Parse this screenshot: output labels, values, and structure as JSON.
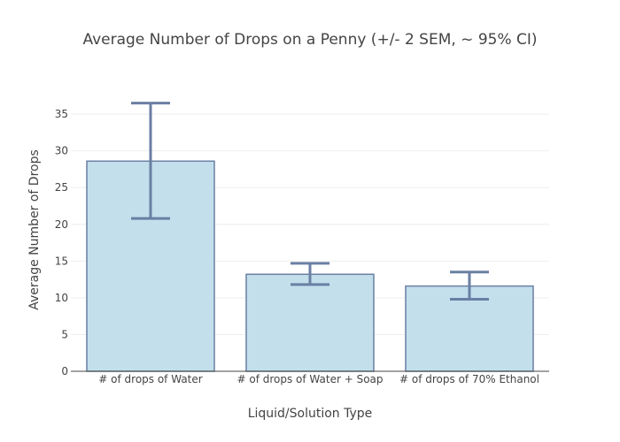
{
  "chart_data": {
    "type": "bar",
    "title": "Average Number of Drops on a Penny (+/- 2 SEM, ~ 95% CI)",
    "xlabel": "Liquid/Solution Type",
    "ylabel": "Average Number of Drops",
    "categories": [
      "# of drops of Water",
      "# of drops of Water + Soap",
      "# of drops of 70% Ethanol"
    ],
    "values": [
      28.6,
      13.2,
      11.6
    ],
    "error_low": [
      20.8,
      11.8,
      9.8
    ],
    "error_high": [
      36.5,
      14.7,
      13.5
    ],
    "ylim": [
      0,
      38.5
    ],
    "yticks": [
      0,
      5,
      10,
      15,
      20,
      25,
      30,
      35
    ],
    "grid": true,
    "colors": {
      "bar_fill": "#c3dfec",
      "bar_stroke": "#6a7fa3",
      "error_bar": "#6a7fa3",
      "grid": "#eeeeee",
      "axis": "#444444"
    }
  }
}
